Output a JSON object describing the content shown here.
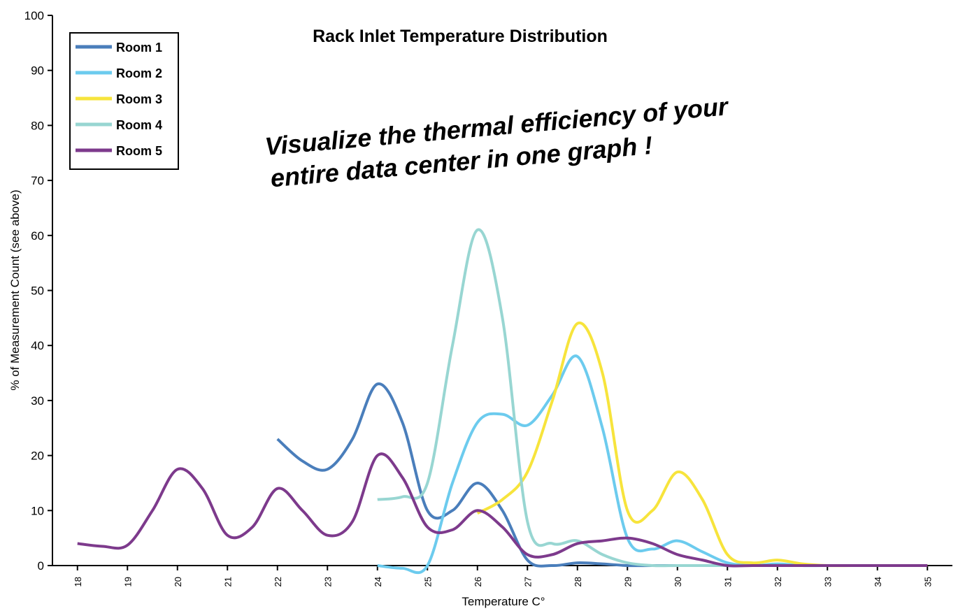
{
  "chart_data": {
    "type": "line",
    "title": "Rack Inlet Temperature Distribution",
    "annotation": [
      "Visualize the thermal efficiency of your",
      "entire data center in one graph !"
    ],
    "annotation_color": "#e8128c",
    "x_label": "Temperature C°",
    "y_label": "% of Measurement Count (see above)",
    "xlim": [
      17.5,
      35.5
    ],
    "xticks": [
      18,
      19,
      20,
      21,
      22,
      23,
      24,
      25,
      26,
      27,
      28,
      29,
      30,
      31,
      32,
      33,
      34,
      35
    ],
    "ylim": [
      0,
      100
    ],
    "yticks": [
      0,
      10,
      20,
      30,
      40,
      50,
      60,
      70,
      80,
      90,
      100
    ],
    "legend": "top-left",
    "series": [
      {
        "name": "Room 1",
        "color": "#4a7ebb",
        "x": [
          22,
          22.5,
          23,
          23.5,
          24,
          24.5,
          25,
          25.5,
          26,
          26.5,
          27,
          27.5,
          28,
          28.5,
          29,
          29.5,
          30
        ],
        "values": [
          23,
          19,
          17.5,
          23,
          33,
          26,
          10,
          10,
          15,
          10,
          1,
          0,
          0.5,
          0.3,
          0,
          0,
          0
        ]
      },
      {
        "name": "Room 2",
        "color": "#6ccbee",
        "x": [
          24,
          24.5,
          25,
          25.5,
          26,
          26.5,
          27,
          27.5,
          28,
          28.5,
          29,
          29.5,
          30,
          30.5,
          31,
          31.5,
          32,
          32.5,
          33
        ],
        "values": [
          0,
          -0.5,
          0,
          15,
          26,
          27.5,
          25.5,
          31,
          38,
          25,
          5,
          3,
          4.5,
          2.5,
          0.5,
          0,
          0.3,
          0,
          0
        ]
      },
      {
        "name": "Room 3",
        "color": "#f7e43c",
        "x": [
          26,
          26.5,
          27,
          27.5,
          28,
          28.5,
          29,
          29.5,
          30,
          30.5,
          31,
          31.5,
          32,
          32.5,
          33,
          33.5,
          34,
          34.5,
          35
        ],
        "values": [
          9.5,
          12,
          17,
          30,
          44,
          35,
          10,
          10,
          17,
          12,
          2,
          0.5,
          1,
          0.3,
          0,
          0,
          0,
          0,
          0
        ]
      },
      {
        "name": "Room 4",
        "color": "#98d6d2",
        "x": [
          24,
          24.5,
          25,
          25.5,
          26,
          26.5,
          27,
          27.5,
          28,
          28.5,
          29,
          29.5,
          30,
          30.5,
          31
        ],
        "values": [
          12,
          12.5,
          15,
          40,
          61,
          45,
          8,
          4,
          4.5,
          2,
          0.5,
          0,
          0,
          0,
          0
        ]
      },
      {
        "name": "Room 5",
        "color": "#7d3a8c",
        "x": [
          18,
          18.5,
          19,
          19.5,
          20,
          20.5,
          21,
          21.5,
          22,
          22.5,
          23,
          23.5,
          24,
          24.5,
          25,
          25.5,
          26,
          26.5,
          27,
          27.5,
          28,
          28.5,
          29,
          29.5,
          30,
          30.5,
          31,
          31.5,
          32,
          32.5,
          33,
          33.5,
          34,
          34.5,
          35
        ],
        "values": [
          4,
          3.5,
          3.7,
          10,
          17.5,
          14,
          5.5,
          7,
          14,
          10,
          5.5,
          8,
          20,
          16,
          7,
          6.5,
          10,
          7,
          2,
          2,
          4,
          4.5,
          5,
          4,
          2,
          1,
          0,
          0,
          0,
          0,
          0,
          0,
          0,
          0,
          0
        ]
      }
    ]
  }
}
